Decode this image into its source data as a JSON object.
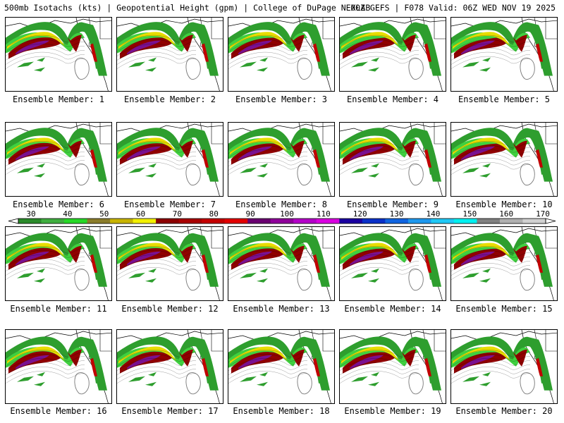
{
  "header": {
    "title": "500mb Isotachs (kts) | Geopotential Height (gpm) | College of DuPage NEXLAB",
    "run": "00Z GEFS | F078 Valid: 06Z WED NOV 19 2025"
  },
  "member_prefix": "Ensemble Member:",
  "members": [
    {
      "number": "1"
    },
    {
      "number": "2"
    },
    {
      "number": "3"
    },
    {
      "number": "4"
    },
    {
      "number": "5"
    },
    {
      "number": "6"
    },
    {
      "number": "7"
    },
    {
      "number": "8"
    },
    {
      "number": "9"
    },
    {
      "number": "10"
    },
    {
      "number": "11"
    },
    {
      "number": "12"
    },
    {
      "number": "13"
    },
    {
      "number": "14"
    },
    {
      "number": "15"
    },
    {
      "number": "16"
    },
    {
      "number": "17"
    },
    {
      "number": "18"
    },
    {
      "number": "19"
    },
    {
      "number": "20"
    }
  ],
  "colorbar": {
    "ticks": [
      "30",
      "40",
      "50",
      "60",
      "70",
      "80",
      "90",
      "100",
      "110",
      "120",
      "130",
      "140",
      "150",
      "160",
      "170"
    ],
    "colors": [
      "#2a8a2a",
      "#3fae3f",
      "#27d827",
      "#8a7c2a",
      "#c8b400",
      "#f2f000",
      "#8b0000",
      "#a80000",
      "#c40000",
      "#e20000",
      "#6a0070",
      "#8f009a",
      "#b400c8",
      "#d900e0",
      "#1a00a0",
      "#0a30c8",
      "#1064e0",
      "#1e98ee",
      "#20c8f5",
      "#00f0f0",
      "#808080",
      "#b0b0b0",
      "#d0d0d0"
    ]
  }
}
